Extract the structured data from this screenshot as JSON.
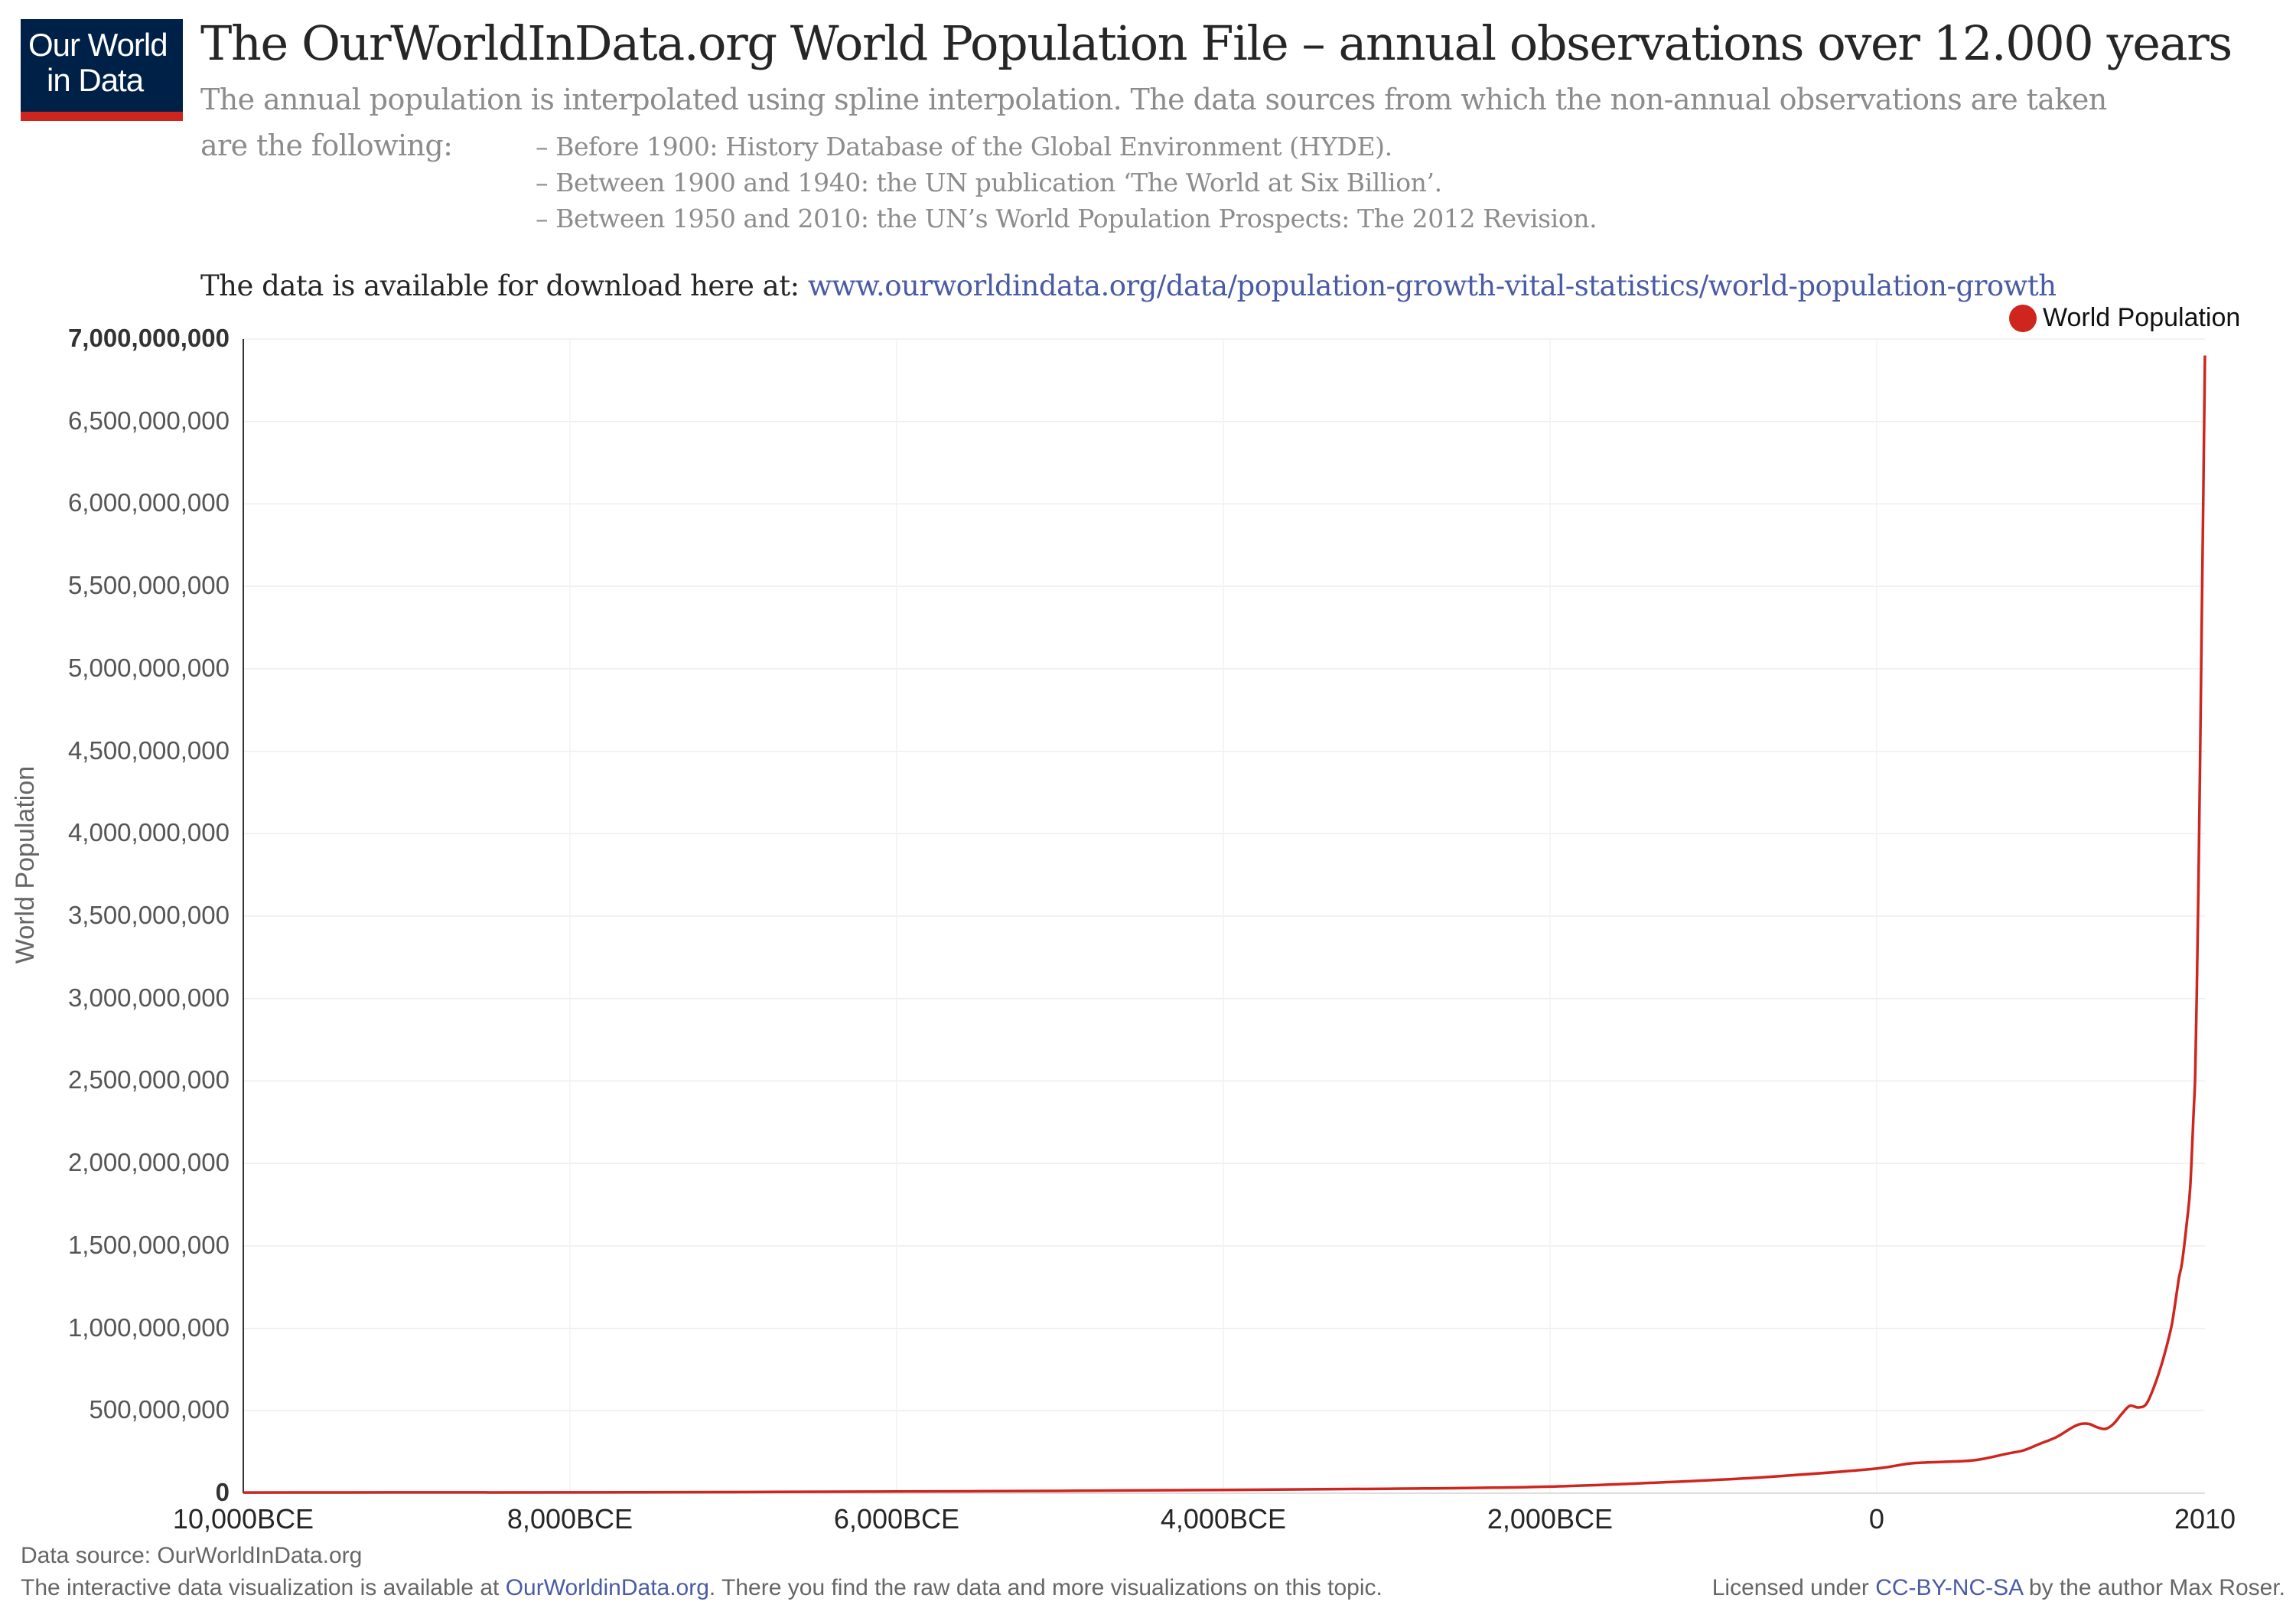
{
  "logo": {
    "line1": "Our World",
    "line2": "in Data"
  },
  "header": {
    "title": "The OurWorldInData.org World Population File – annual observations over 12.000 years",
    "subtitle_line1": "The annual population is interpolated using spline interpolation. The data sources from which the non-annual observations are taken",
    "subtitle_line2": "are the following:",
    "sources": [
      "– Before 1900: History Database of the Global Environment (HYDE).",
      "– Between 1900 and 1940: the UN publication ‘The World at Six Billion’.",
      "– Between 1950 and 2010: the UN’s World Population Prospects: The 2012 Revision."
    ],
    "download_text": "The data is available for download here at: ",
    "download_link": "www.ourworldindata.org/data/population-growth-vital-statistics/world-population-growth"
  },
  "colors": {
    "series": "#ce261e",
    "link": "#4a5ba6",
    "logo_bg": "#002147"
  },
  "chart_data": {
    "type": "line",
    "title": "The OurWorldInData.org World Population File – annual observations over 12.000 years",
    "xlabel": "",
    "ylabel": "World Population",
    "xlim": [
      -10000,
      2010
    ],
    "ylim": [
      0,
      7000000000
    ],
    "grid": true,
    "legend_position": "top-right",
    "x_tick_labels": [
      "10,000BCE",
      "8,000BCE",
      "6,000BCE",
      "4,000BCE",
      "2,000BCE",
      "0",
      "2010"
    ],
    "x_ticks": [
      -10000,
      -8000,
      -6000,
      -4000,
      -2000,
      0,
      2010
    ],
    "y_tick_labels": [
      "0",
      "500,000,000",
      "1,000,000,000",
      "1,500,000,000",
      "2,000,000,000",
      "2,500,000,000",
      "3,000,000,000",
      "3,500,000,000",
      "4,000,000,000",
      "4,500,000,000",
      "5,000,000,000",
      "5,500,000,000",
      "6,000,000,000",
      "6,500,000,000",
      "7,000,000,000"
    ],
    "y_ticks": [
      0,
      500000000,
      1000000000,
      1500000000,
      2000000000,
      2500000000,
      3000000000,
      3500000000,
      4000000000,
      4500000000,
      5000000000,
      5500000000,
      6000000000,
      6500000000,
      7000000000
    ],
    "series": [
      {
        "name": "World Population",
        "x": [
          -10000,
          -9000,
          -8000,
          -7000,
          -6000,
          -5000,
          -4000,
          -3000,
          -2000,
          -1000,
          -500,
          0,
          200,
          400,
          600,
          800,
          900,
          1000,
          1100,
          1200,
          1250,
          1300,
          1350,
          1400,
          1450,
          1500,
          1550,
          1600,
          1650,
          1700,
          1750,
          1800,
          1820,
          1850,
          1870,
          1900,
          1920,
          1940,
          1950,
          1960,
          1970,
          1980,
          1990,
          2000,
          2010
        ],
        "y": [
          4000000,
          5000000,
          5000000,
          7000000,
          10000000,
          14000000,
          20000000,
          27000000,
          40000000,
          80000000,
          110000000,
          150000000,
          180000000,
          190000000,
          200000000,
          240000000,
          260000000,
          300000000,
          340000000,
          400000000,
          420000000,
          420000000,
          400000000,
          390000000,
          420000000,
          480000000,
          530000000,
          520000000,
          540000000,
          650000000,
          800000000,
          990000000,
          1100000000,
          1300000000,
          1400000000,
          1650000000,
          1860000000,
          2300000000,
          2530000000,
          3030000000,
          3690000000,
          4430000000,
          5260000000,
          6070000000,
          6900000000
        ]
      }
    ]
  },
  "footer": {
    "source": "Data source: OurWorldInData.org",
    "interactive_pre": "The interactive data visualization is available at ",
    "interactive_link": "OurWorldinData.org",
    "interactive_post": ". There you find the raw data and more visualizations on this topic.",
    "license_pre": "Licensed under ",
    "license_link": "CC-BY-NC-SA",
    "license_post": " by the author Max Roser."
  }
}
